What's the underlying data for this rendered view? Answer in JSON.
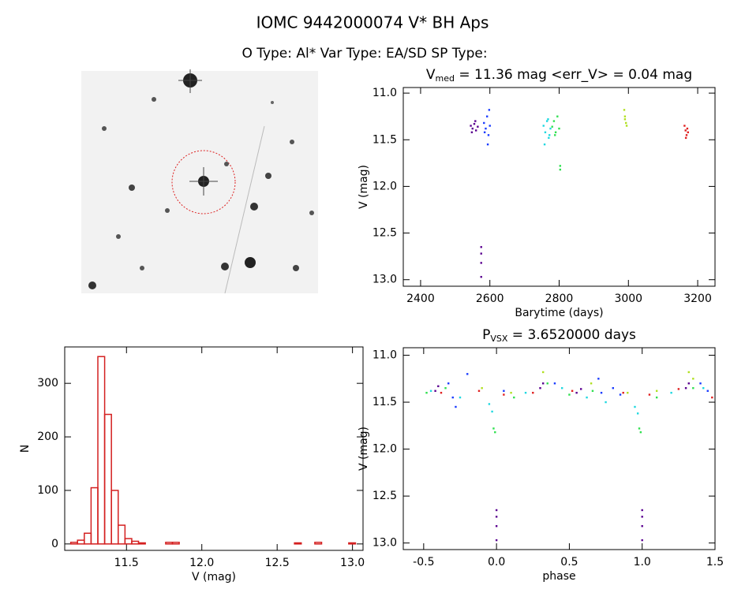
{
  "header": {
    "title": "IOMC 9442000074   V* BH Aps",
    "subtitle": "O Type: Al*  Var Type: EA/SD  SP Type:"
  },
  "chart_data": [
    {
      "type": "scatter",
      "title": {
        "main": "V",
        "sub": "med",
        "rest": " = 11.36 mag <err_V> = 0.04 mag"
      },
      "xlabel": "Barytime (days)",
      "ylabel": "V (mag)",
      "xlim": [
        2350,
        3250
      ],
      "ylim": [
        13.07,
        10.94
      ],
      "xticks": [
        2400,
        2600,
        2800,
        3000,
        3200
      ],
      "yticks": [
        {
          "value": 11.0,
          "label": "11.0"
        },
        11.5,
        {
          "value": 12.0,
          "label": "12.0"
        },
        12.5,
        {
          "value": 13.0,
          "label": "13.0"
        }
      ],
      "series": [
        {
          "color": "#5a0090",
          "x": [
            2545,
            2550,
            2555,
            2560,
            2565,
            2548,
            2558,
            2575,
            2575,
            2575,
            2575
          ],
          "values": [
            11.35,
            11.38,
            11.33,
            11.4,
            11.36,
            11.42,
            11.3,
            12.65,
            12.72,
            12.82,
            12.97
          ]
        },
        {
          "color": "#1a3cff",
          "x": [
            2583,
            2588,
            2592,
            2596,
            2600,
            2585,
            2594,
            2598
          ],
          "values": [
            11.32,
            11.38,
            11.25,
            11.45,
            11.35,
            11.42,
            11.55,
            11.18
          ]
        },
        {
          "color": "#20d8e0",
          "x": [
            2755,
            2760,
            2765,
            2770,
            2775,
            2758,
            2768,
            2772
          ],
          "values": [
            11.35,
            11.42,
            11.3,
            11.48,
            11.38,
            11.55,
            11.28,
            11.45
          ]
        },
        {
          "color": "#30e050",
          "x": [
            2780,
            2785,
            2790,
            2795,
            2800,
            2803,
            2803,
            2788
          ],
          "values": [
            11.36,
            11.3,
            11.42,
            11.25,
            11.38,
            11.78,
            11.82,
            11.45
          ]
        },
        {
          "color": "#b0e020",
          "x": [
            2988,
            2990,
            2993,
            2995,
            2990
          ],
          "values": [
            11.18,
            11.28,
            11.32,
            11.35,
            11.25
          ]
        },
        {
          "color": "#e02020",
          "x": [
            3162,
            3165,
            3168,
            3170,
            3172,
            3166
          ],
          "values": [
            11.35,
            11.4,
            11.45,
            11.38,
            11.42,
            11.48
          ]
        }
      ]
    },
    {
      "type": "histogram",
      "xlabel": "V (mag)",
      "ylabel": "N",
      "color": "#d42020",
      "xlim": [
        11.09,
        13.07
      ],
      "ylim": [
        -12,
        368
      ],
      "xticks": [
        11.5,
        {
          "value": 12.0,
          "label": "12.0"
        },
        12.5,
        {
          "value": 13.0,
          "label": "13.0"
        }
      ],
      "yticks": [
        0,
        100,
        200,
        300
      ],
      "bins": [
        11.13,
        11.175,
        11.22,
        11.265,
        11.31,
        11.355,
        11.4,
        11.445,
        11.49,
        11.535,
        11.58,
        11.625,
        11.67,
        11.715,
        11.76,
        11.805,
        11.85,
        11.895,
        11.94,
        11.985,
        12.03,
        12.075,
        12.12,
        12.165,
        12.21,
        12.255,
        12.3,
        12.345,
        12.39,
        12.435,
        12.48,
        12.525,
        12.57,
        12.615,
        12.66,
        12.705,
        12.75,
        12.795,
        12.84,
        12.885,
        12.93,
        12.975,
        13.02
      ],
      "values": [
        3,
        7,
        20,
        105,
        350,
        242,
        100,
        35,
        10,
        5,
        2,
        0,
        0,
        0,
        3,
        3,
        0,
        0,
        0,
        0,
        0,
        0,
        0,
        0,
        0,
        0,
        0,
        0,
        0,
        0,
        0,
        0,
        0,
        2,
        0,
        0,
        3,
        0,
        0,
        0,
        0,
        2
      ]
    },
    {
      "type": "scatter",
      "title": {
        "main": "P",
        "sub": "VSX",
        "rest": " = 3.6520000 days"
      },
      "xlabel": "phase",
      "ylabel": "V (mag)",
      "xlim": [
        -0.64,
        1.5
      ],
      "ylim": [
        13.07,
        10.92
      ],
      "xticks": [
        -0.5,
        {
          "value": 0.0,
          "label": "0.0"
        },
        0.5,
        {
          "value": 1.0,
          "label": "1.0"
        },
        1.5
      ],
      "yticks": [
        {
          "value": 11.0,
          "label": "11.0"
        },
        11.5,
        {
          "value": 12.0,
          "label": "12.0"
        },
        12.5,
        {
          "value": 13.0,
          "label": "13.0"
        }
      ],
      "series": [
        {
          "color": "#5a0090",
          "x": [
            -0.42,
            -0.4,
            0.3,
            0.32,
            0.55,
            0.58,
            1.3,
            1.32,
            0,
            0,
            0,
            0,
            1,
            1,
            1,
            1
          ],
          "values": [
            11.38,
            11.33,
            11.35,
            11.3,
            11.4,
            11.36,
            11.35,
            11.3,
            12.65,
            12.72,
            12.82,
            12.97,
            12.65,
            12.72,
            12.82,
            12.97
          ]
        },
        {
          "color": "#1a3cff",
          "x": [
            -0.33,
            -0.3,
            -0.2,
            0.05,
            0.4,
            0.7,
            0.72,
            0.8,
            0.85,
            1.4,
            1.45,
            -0.28
          ],
          "values": [
            11.3,
            11.45,
            11.2,
            11.38,
            11.3,
            11.25,
            11.4,
            11.35,
            11.42,
            11.3,
            11.38,
            11.55
          ]
        },
        {
          "color": "#20d8e0",
          "x": [
            -0.45,
            -0.25,
            -0.05,
            -0.03,
            0.2,
            0.45,
            0.62,
            0.75,
            0.95,
            0.97,
            1.2,
            1.42
          ],
          "values": [
            11.38,
            11.45,
            11.52,
            11.6,
            11.4,
            11.35,
            11.45,
            11.5,
            11.55,
            11.62,
            11.4,
            11.35
          ]
        },
        {
          "color": "#30e050",
          "x": [
            -0.48,
            -0.35,
            -0.02,
            -0.01,
            0.12,
            0.35,
            0.5,
            0.66,
            0.98,
            0.99,
            1.1,
            1.35
          ],
          "values": [
            11.4,
            11.35,
            11.78,
            11.82,
            11.45,
            11.3,
            11.42,
            11.38,
            11.78,
            11.82,
            11.45,
            11.35
          ]
        },
        {
          "color": "#b0e020",
          "x": [
            -0.1,
            0.1,
            0.32,
            0.65,
            0.9,
            1.1,
            1.32,
            1.35
          ],
          "values": [
            11.35,
            11.4,
            11.18,
            11.3,
            11.4,
            11.38,
            11.18,
            11.25
          ]
        },
        {
          "color": "#e02020",
          "x": [
            -0.38,
            -0.12,
            0.05,
            0.25,
            0.52,
            0.87,
            1.05,
            1.25,
            1.48
          ],
          "values": [
            11.4,
            11.38,
            11.42,
            11.4,
            11.38,
            11.4,
            11.42,
            11.36,
            11.45
          ]
        }
      ]
    }
  ]
}
